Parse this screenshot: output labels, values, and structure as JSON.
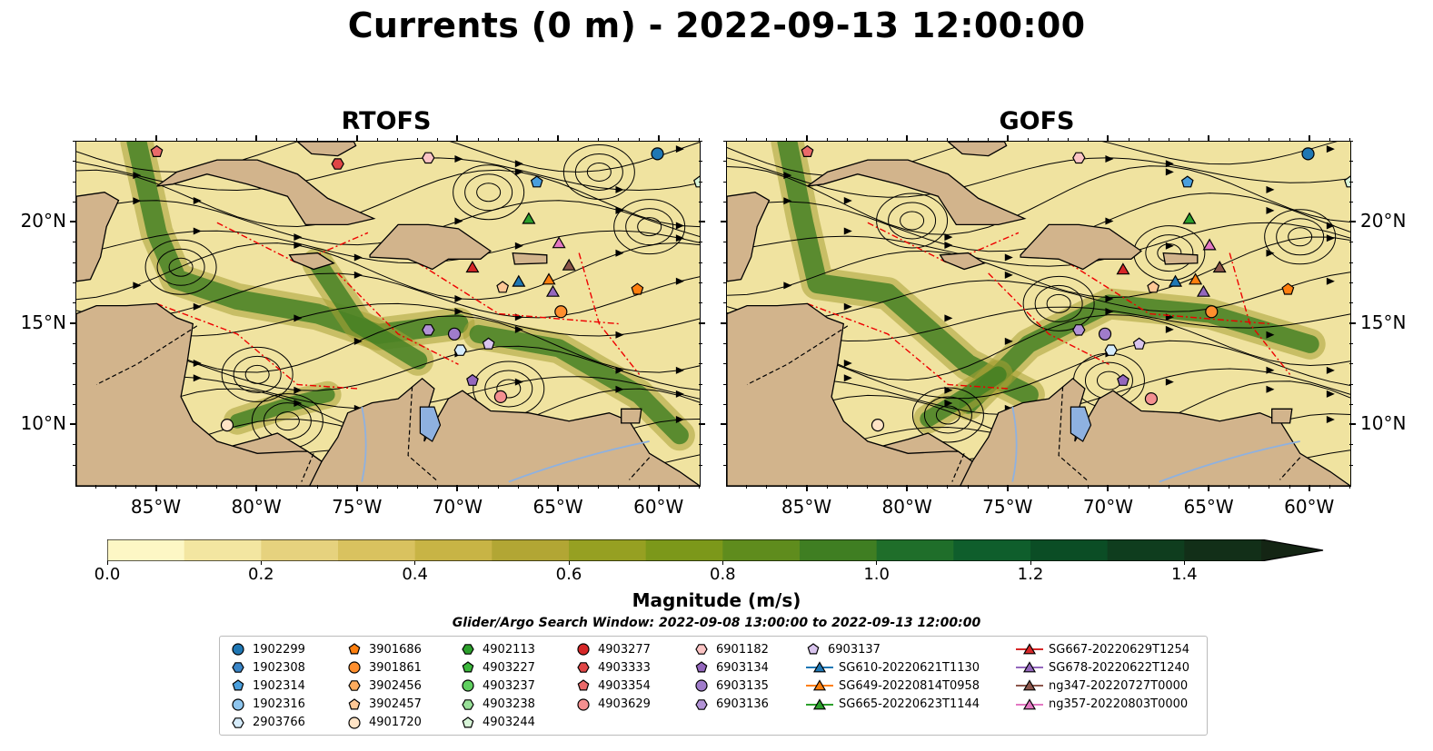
{
  "title": "Currents (0 m) - 2022-09-13 12:00:00",
  "panels": [
    {
      "title": "RTOFS"
    },
    {
      "title": "GOFS"
    }
  ],
  "axes": {
    "x_ticks": [
      "85°W",
      "80°W",
      "75°W",
      "70°W",
      "65°W",
      "60°W"
    ],
    "y_ticks": [
      "20°N",
      "15°N",
      "10°N"
    ],
    "lon_range": [
      -89,
      -58
    ],
    "lat_range": [
      7,
      24
    ]
  },
  "colorbar": {
    "label": "Magnitude (m/s)",
    "ticks": [
      "0.0",
      "0.2",
      "0.4",
      "0.6",
      "0.8",
      "1.0",
      "1.2",
      "1.4"
    ],
    "range": [
      0.0,
      1.5
    ],
    "extend": "max",
    "colors": [
      "#fdf7c5",
      "#f3e6a1",
      "#e6d27e",
      "#d9c25f",
      "#c8b445",
      "#b2a634",
      "#96a022",
      "#7c981a",
      "#5f8c1d",
      "#3f7e22",
      "#1f6e2a",
      "#0f5e2c",
      "#0b4d25",
      "#0f3d1e",
      "#122f18",
      "#142514"
    ]
  },
  "search_window": "Glider/Argo Search Window: 2022-09-08 13:00:00 to 2022-09-13 12:00:00",
  "legend": {
    "items": [
      {
        "label": "1902299",
        "marker": "circle",
        "color": "#1f77b4"
      },
      {
        "label": "1902308",
        "marker": "hexagon",
        "color": "#3a86c8"
      },
      {
        "label": "1902314",
        "marker": "pentagon",
        "color": "#4a9fdd"
      },
      {
        "label": "1902316",
        "marker": "circle",
        "color": "#8ec5ee"
      },
      {
        "label": "2903766",
        "marker": "hexagon",
        "color": "#d6ecfb"
      },
      {
        "label": "3901686",
        "marker": "pentagon",
        "color": "#ff7f0e"
      },
      {
        "label": "3901861",
        "marker": "circle",
        "color": "#ff8f2e"
      },
      {
        "label": "3902456",
        "marker": "hexagon",
        "color": "#ffac5e"
      },
      {
        "label": "3902457",
        "marker": "pentagon",
        "color": "#ffc896"
      },
      {
        "label": "4901720",
        "marker": "circle",
        "color": "#ffe4c6"
      },
      {
        "label": "4902113",
        "marker": "hexagon",
        "color": "#2ca02c"
      },
      {
        "label": "4903227",
        "marker": "pentagon",
        "color": "#3cb83c"
      },
      {
        "label": "4903237",
        "marker": "circle",
        "color": "#5fcf5f"
      },
      {
        "label": "4903238",
        "marker": "hexagon",
        "color": "#98e098"
      },
      {
        "label": "4903244",
        "marker": "pentagon",
        "color": "#d8f5d8"
      },
      {
        "label": "4903277",
        "marker": "circle",
        "color": "#d62728"
      },
      {
        "label": "4903333",
        "marker": "hexagon",
        "color": "#e04646"
      },
      {
        "label": "4903354",
        "marker": "pentagon",
        "color": "#ea6a6a"
      },
      {
        "label": "4903629",
        "marker": "circle",
        "color": "#f49090"
      },
      {
        "label": "6901182",
        "marker": "hexagon",
        "color": "#fbc4c4"
      },
      {
        "label": "6903134",
        "marker": "pentagon",
        "color": "#9467bd"
      },
      {
        "label": "6903135",
        "marker": "circle",
        "color": "#a07ccb"
      },
      {
        "label": "6903136",
        "marker": "hexagon",
        "color": "#b293d6"
      },
      {
        "label": "6903137",
        "marker": "pentagon",
        "color": "#d9c4ee"
      },
      {
        "label": "SG610-20220621T1130",
        "marker": "triangle",
        "color": "#1f77b4"
      },
      {
        "label": "SG649-20220814T0958",
        "marker": "triangle",
        "color": "#ff7f0e"
      },
      {
        "label": "SG665-20220623T1144",
        "marker": "triangle",
        "color": "#2ca02c"
      },
      {
        "label": "SG667-20220629T1254",
        "marker": "triangle",
        "color": "#d62728"
      },
      {
        "label": "SG678-20220622T1240",
        "marker": "triangle",
        "color": "#9467bd"
      },
      {
        "label": "ng347-20220727T0000",
        "marker": "triangle",
        "color": "#8c564b"
      },
      {
        "label": "ng357-20220803T0000",
        "marker": "triangle",
        "color": "#e377c2"
      }
    ]
  },
  "observations": {
    "rtofs": [
      {
        "ref": 0,
        "lon": -60.1,
        "lat": 23.4
      },
      {
        "ref": 2,
        "lon": -66.1,
        "lat": 22.0
      },
      {
        "ref": 14,
        "lon": -58.0,
        "lat": 22.0
      },
      {
        "ref": 17,
        "lon": -85.0,
        "lat": 23.5
      },
      {
        "ref": 16,
        "lon": -76.0,
        "lat": 22.9
      },
      {
        "ref": 19,
        "lon": -71.5,
        "lat": 23.2
      },
      {
        "ref": 26,
        "lon": -66.5,
        "lat": 20.2
      },
      {
        "ref": 30,
        "lon": -65.0,
        "lat": 19.0
      },
      {
        "ref": 27,
        "lon": -69.3,
        "lat": 17.8
      },
      {
        "ref": 29,
        "lon": -64.5,
        "lat": 17.9
      },
      {
        "ref": 24,
        "lon": -67.0,
        "lat": 17.1
      },
      {
        "ref": 25,
        "lon": -65.5,
        "lat": 17.2
      },
      {
        "ref": 28,
        "lon": -65.3,
        "lat": 16.6
      },
      {
        "ref": 8,
        "lon": -67.8,
        "lat": 16.8
      },
      {
        "ref": 5,
        "lon": -61.1,
        "lat": 16.7
      },
      {
        "ref": 6,
        "lon": -64.9,
        "lat": 15.6
      },
      {
        "ref": 22,
        "lon": -71.5,
        "lat": 14.7
      },
      {
        "ref": 21,
        "lon": -70.2,
        "lat": 14.5
      },
      {
        "ref": 23,
        "lon": -68.5,
        "lat": 14.0
      },
      {
        "ref": 4,
        "lon": -69.9,
        "lat": 13.7
      },
      {
        "ref": 20,
        "lon": -69.3,
        "lat": 12.2
      },
      {
        "ref": 18,
        "lon": -67.9,
        "lat": 11.4
      },
      {
        "ref": 9,
        "lon": -81.5,
        "lat": 10.0
      }
    ],
    "gofs": [
      {
        "ref": 0,
        "lon": -60.1,
        "lat": 23.4
      },
      {
        "ref": 2,
        "lon": -66.1,
        "lat": 22.0
      },
      {
        "ref": 14,
        "lon": -58.0,
        "lat": 22.0
      },
      {
        "ref": 17,
        "lon": -85.0,
        "lat": 23.5
      },
      {
        "ref": 19,
        "lon": -71.5,
        "lat": 23.2
      },
      {
        "ref": 26,
        "lon": -66.0,
        "lat": 20.2
      },
      {
        "ref": 30,
        "lon": -65.0,
        "lat": 18.9
      },
      {
        "ref": 27,
        "lon": -69.3,
        "lat": 17.7
      },
      {
        "ref": 29,
        "lon": -64.5,
        "lat": 17.8
      },
      {
        "ref": 8,
        "lon": -67.8,
        "lat": 16.8
      },
      {
        "ref": 24,
        "lon": -66.7,
        "lat": 17.1
      },
      {
        "ref": 25,
        "lon": -65.7,
        "lat": 17.2
      },
      {
        "ref": 28,
        "lon": -65.3,
        "lat": 16.6
      },
      {
        "ref": 5,
        "lon": -61.1,
        "lat": 16.7
      },
      {
        "ref": 6,
        "lon": -64.9,
        "lat": 15.6
      },
      {
        "ref": 22,
        "lon": -71.5,
        "lat": 14.7
      },
      {
        "ref": 21,
        "lon": -70.2,
        "lat": 14.5
      },
      {
        "ref": 23,
        "lon": -68.5,
        "lat": 14.0
      },
      {
        "ref": 4,
        "lon": -69.9,
        "lat": 13.7
      },
      {
        "ref": 20,
        "lon": -69.3,
        "lat": 12.2
      },
      {
        "ref": 18,
        "lon": -67.9,
        "lat": 11.3
      },
      {
        "ref": 9,
        "lon": -81.5,
        "lat": 10.0
      }
    ]
  }
}
